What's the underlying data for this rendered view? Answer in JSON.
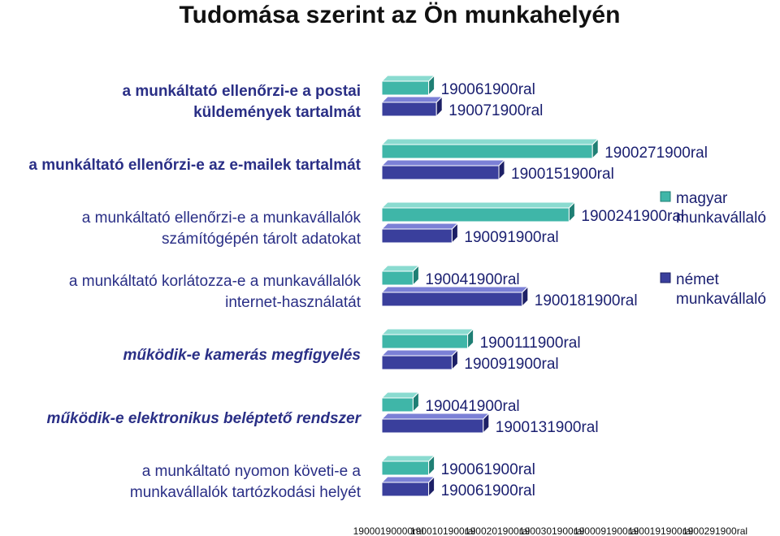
{
  "title": "Tudomása szerint az Ön munkahelyén",
  "colors": {
    "magyar_front": "#3fb6a8",
    "magyar_top": "#8adbd0",
    "magyar_dark": "#1f7f74",
    "nemet_front": "#3a3f9c",
    "nemet_top": "#7b80d6",
    "nemet_dark": "#1d2066"
  },
  "chart_data": {
    "type": "bar",
    "orientation": "horizontal",
    "title": "Tudomása szerint az Ön munkahelyén",
    "categories": [
      {
        "lines": [
          "a munkáltató ellenőrzi-e a postai",
          "küldemények tartalmát"
        ],
        "style": "bold"
      },
      {
        "lines": [
          "a munkáltató ellenőrzi-e az e-mailek tartalmát"
        ],
        "style": "bold"
      },
      {
        "lines": [
          "a munkáltató ellenőrzi-e a munkavállalók",
          "számítógépén tárolt adatokat"
        ],
        "style": "normal"
      },
      {
        "lines": [
          "a munkáltató korlátozza-e a munkavállalók",
          "internet-használatát"
        ],
        "style": "normal"
      },
      {
        "lines": [
          "működik-e kamerás megfigyelés"
        ],
        "style": "italic"
      },
      {
        "lines": [
          "működik-e elektronikus beléptető rendszer"
        ],
        "style": "italic"
      },
      {
        "lines": [
          "a munkáltató nyomon követi-e a",
          "munkavállalók tartózkodási helyét"
        ],
        "style": "normal"
      }
    ],
    "series": [
      {
        "name": "magyar munkavállaló",
        "values": [
          6,
          27,
          24,
          4,
          11,
          4,
          6
        ],
        "labels": [
          "190061900ral",
          "1900271900ral",
          "1900241900ral",
          "190041900ral",
          "1900111900ral",
          "190041900ral",
          "190061900ral"
        ]
      },
      {
        "name": "német munkavállaló",
        "values": [
          7,
          15,
          9,
          18,
          9,
          13,
          6
        ],
        "labels": [
          "190071900ral",
          "1900151900ral",
          "190091900ral",
          "1900181900ral",
          "190091900ral",
          "1900131900ral",
          "190061900ral"
        ]
      }
    ],
    "x_ticks": [
      "19000190000ral",
      "1900101900ral",
      "1900201900ral",
      "1900301900ral",
      "1900091900ral",
      "1900191900ral",
      "1900291900ral"
    ],
    "legend": [
      "magyar munkavállaló",
      "német munkavállaló"
    ],
    "legend_position": "right",
    "grid": false
  }
}
